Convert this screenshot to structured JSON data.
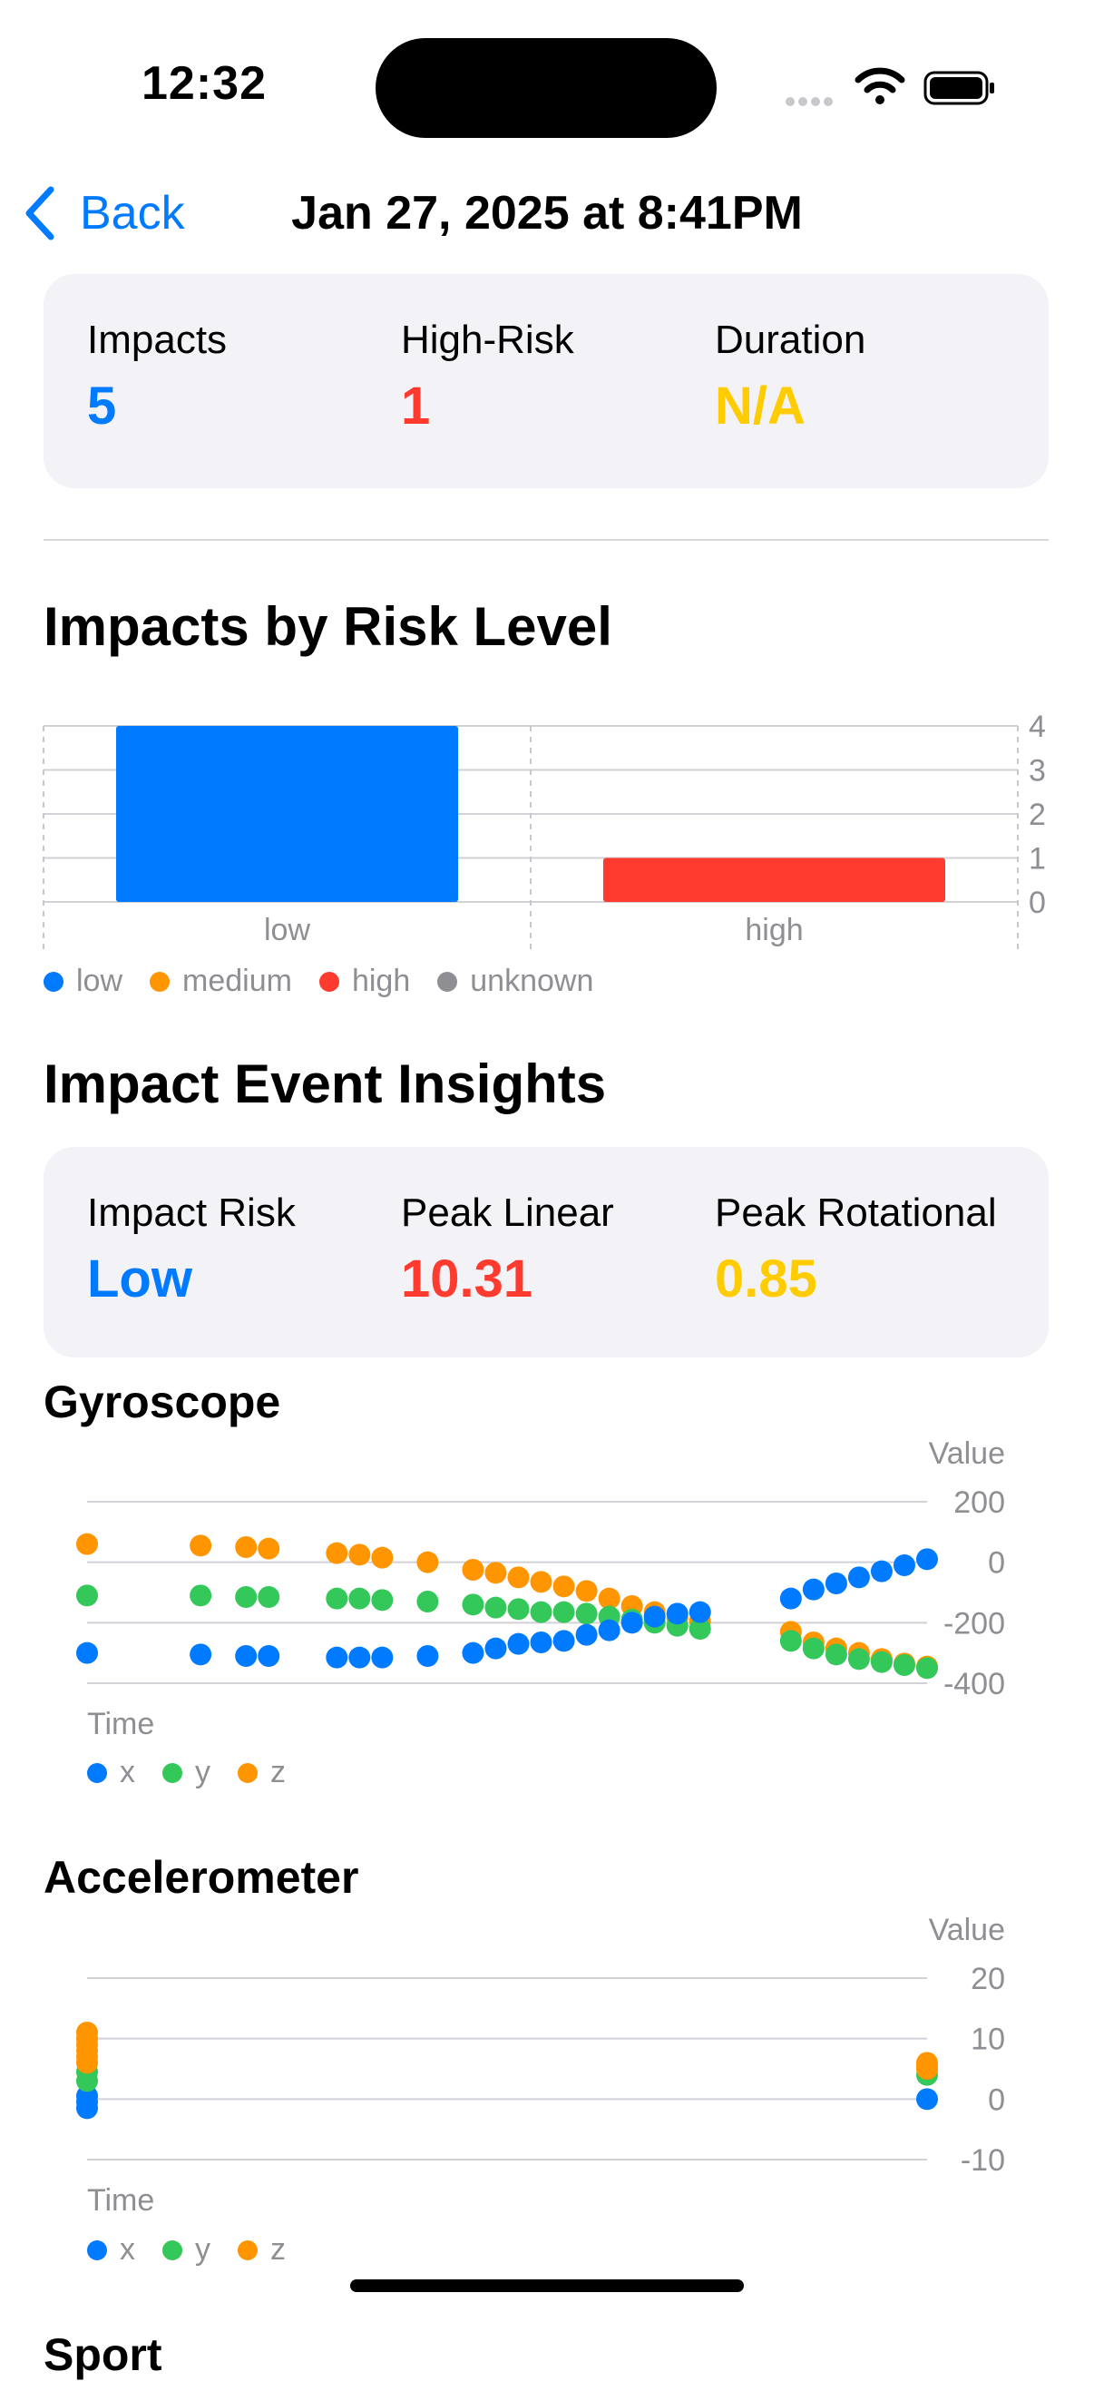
{
  "status_bar": {
    "time": "12:32"
  },
  "nav": {
    "back_label": "Back",
    "title": "Jan 27, 2025 at 8:41PM"
  },
  "summary": {
    "items": [
      {
        "label": "Impacts",
        "value": "5",
        "color": "#007aff"
      },
      {
        "label": "High-Risk",
        "value": "1",
        "color": "#ff3b30"
      },
      {
        "label": "Duration",
        "value": "N/A",
        "color": "#ffcc00"
      }
    ]
  },
  "risk_section": {
    "title": "Impacts by Risk Level"
  },
  "insights": {
    "title": "Impact Event Insights",
    "items": [
      {
        "label": "Impact Risk",
        "value": "Low",
        "color": "#007aff"
      },
      {
        "label": "Peak Linear",
        "value": "10.31",
        "color": "#ff3b30"
      },
      {
        "label": "Peak Rotational",
        "value": "0.85",
        "color": "#ffcc00"
      }
    ]
  },
  "gyro_section": {
    "title": "Gyroscope"
  },
  "accel_section": {
    "title": "Accelerometer"
  },
  "sport_section": {
    "title": "Sport"
  },
  "chart_data": [
    {
      "type": "bar",
      "categories": [
        "low",
        "high"
      ],
      "values": [
        4,
        1
      ],
      "colors": [
        "#007aff",
        "#ff3b30"
      ],
      "ylim": [
        0,
        4
      ],
      "yticks": [
        0,
        1,
        2,
        3,
        4
      ],
      "legend": [
        {
          "name": "low",
          "color": "#007aff"
        },
        {
          "name": "medium",
          "color": "#ff9500"
        },
        {
          "name": "high",
          "color": "#ff3b30"
        },
        {
          "name": "unknown",
          "color": "#8e8e93"
        }
      ],
      "grid": true,
      "legend_position": "bottom-left"
    },
    {
      "type": "scatter",
      "xlabel": "Time",
      "ylabel": "Value",
      "ylim": [
        -400,
        200
      ],
      "yticks": [
        200,
        0,
        -200,
        -400
      ],
      "grid": true,
      "legend_position": "bottom-left",
      "x": [
        0,
        5,
        7,
        8,
        11,
        12,
        13,
        15,
        17,
        18,
        19,
        20,
        21,
        22,
        23,
        24,
        25,
        26,
        27,
        31,
        32,
        33,
        34,
        35,
        36,
        37
      ],
      "series": [
        {
          "name": "x",
          "color": "#007aff",
          "values": [
            -300,
            -305,
            -310,
            -310,
            -315,
            -315,
            -315,
            -310,
            -300,
            -285,
            -270,
            -265,
            -260,
            -240,
            -225,
            -200,
            -180,
            -170,
            -165,
            -120,
            -90,
            -70,
            -50,
            -30,
            -10,
            10
          ]
        },
        {
          "name": "y",
          "color": "#34c759",
          "values": [
            -110,
            -110,
            -115,
            -115,
            -120,
            -120,
            -125,
            -130,
            -140,
            -150,
            -155,
            -165,
            -165,
            -170,
            -180,
            -190,
            -200,
            -210,
            -220,
            -260,
            -285,
            -305,
            -320,
            -330,
            -340,
            -350
          ]
        },
        {
          "name": "z",
          "color": "#ff9500",
          "values": [
            60,
            55,
            50,
            45,
            30,
            25,
            15,
            0,
            -25,
            -35,
            -50,
            -65,
            -80,
            -95,
            -120,
            -145,
            -165,
            -185,
            -195,
            -230,
            -265,
            -285,
            -300,
            -320,
            -335,
            -345
          ]
        }
      ]
    },
    {
      "type": "scatter",
      "xlabel": "Time",
      "ylabel": "Value",
      "ylim": [
        -10,
        20
      ],
      "yticks": [
        20,
        10,
        0,
        -10
      ],
      "grid": true,
      "legend_position": "bottom-left",
      "series": [
        {
          "name": "x",
          "color": "#007aff",
          "points": [
            [
              0,
              -1.5
            ],
            [
              0,
              -0.5
            ],
            [
              0,
              0.5
            ],
            [
              1,
              0
            ]
          ]
        },
        {
          "name": "y",
          "color": "#34c759",
          "points": [
            [
              0,
              3
            ],
            [
              0,
              4.5
            ],
            [
              1,
              4
            ]
          ]
        },
        {
          "name": "z",
          "color": "#ff9500",
          "points": [
            [
              0,
              6
            ],
            [
              0,
              7
            ],
            [
              0,
              8
            ],
            [
              0,
              9
            ],
            [
              0,
              10
            ],
            [
              0,
              11
            ],
            [
              1,
              5
            ],
            [
              1,
              5.5
            ],
            [
              1,
              6
            ]
          ]
        }
      ]
    }
  ]
}
